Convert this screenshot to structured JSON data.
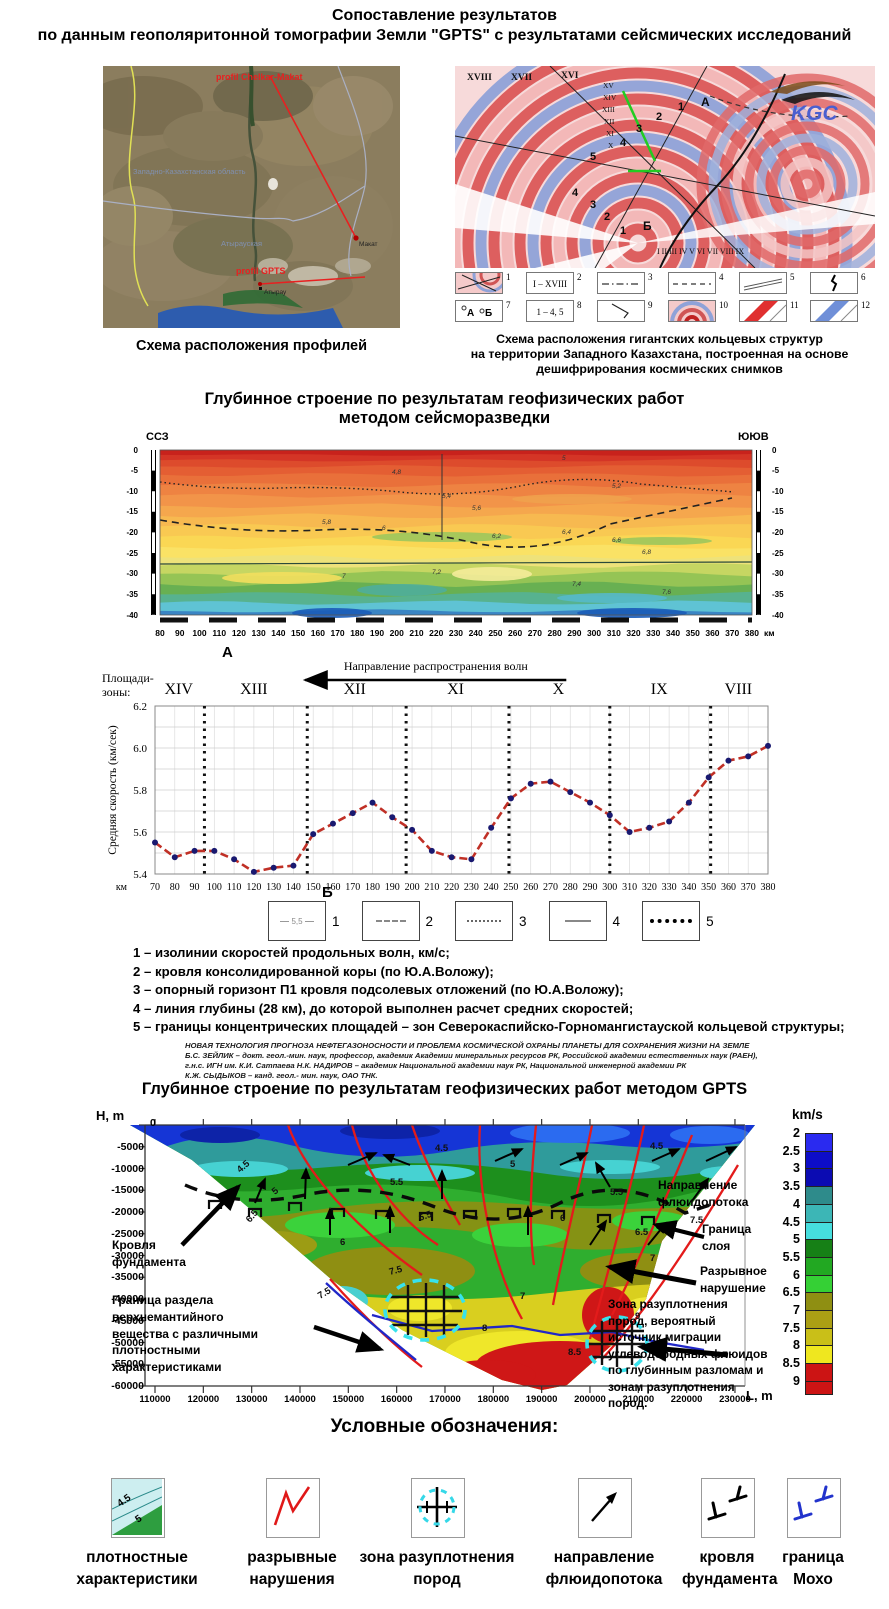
{
  "header": {
    "title_line1": "Сопоставление результатов",
    "title_line2": "по данным геополяритонной томографии Земли  \"GPTS\"  с  результатами сейсмических исследований"
  },
  "profiles_map": {
    "caption": "Схема расположения профилей",
    "labels": {
      "profile_north": "profil Chelkar-Makat",
      "region_west": "Западно-Казахстанская область",
      "region_atyrau": "Атырауская",
      "profile_gpts": "profil GPTS",
      "town_makat": "Макат",
      "city_atyrau": "Атырау"
    }
  },
  "rings_map": {
    "caption_line1": "Схема расположения гигантских кольцевых структур",
    "caption_line2": "на территории Западного Казахстана, построенная на основе",
    "caption_line3": "дешифрирования космических снимков",
    "top_numerals": [
      "XVIII",
      "XVII",
      "XVI"
    ],
    "column_numerals": [
      "XV",
      "XIV",
      "XIII",
      "XII",
      "XI",
      "X"
    ],
    "upper_numbers": [
      "1",
      "2",
      "3",
      "4",
      "5"
    ],
    "lower_numbers": [
      "4",
      "3",
      "2",
      "1"
    ],
    "point_a": "А",
    "point_b": "Б",
    "bottom_numerals": "I   II   III   IV   V   VI   VII   VIII   IX",
    "logo": "KGC",
    "legend": [
      {
        "num": "1",
        "glyph": "rings-lines"
      },
      {
        "num": "2",
        "glyph": "text",
        "text": "I – XVIII"
      },
      {
        "num": "3",
        "glyph": "dashdot"
      },
      {
        "num": "4",
        "glyph": "dashed"
      },
      {
        "num": "5",
        "glyph": "parallel"
      },
      {
        "num": "6",
        "glyph": "fault"
      },
      {
        "num": "7",
        "glyph": "letters",
        "text_a": "А",
        "text_b": "Б"
      },
      {
        "num": "8",
        "glyph": "text",
        "text": "1 – 4, 5"
      },
      {
        "num": "9",
        "glyph": "bent"
      },
      {
        "num": "10",
        "glyph": "rings-red"
      },
      {
        "num": "11",
        "glyph": "stripe-red"
      },
      {
        "num": "12",
        "glyph": "stripe-blue"
      }
    ]
  },
  "seismic_section": {
    "title_line1": "Глубинное строение по результатам геофизических работ",
    "title_line2": "методом сейсморазведки",
    "nw_label": "ССЗ",
    "se_label": "ЮЮВ",
    "depth_ticks": [
      "0",
      "-5",
      "-10",
      "-15",
      "-20",
      "-25",
      "-30",
      "-35",
      "-40"
    ],
    "x_ticks": [
      "80",
      "90",
      "100",
      "110",
      "120",
      "130",
      "140",
      "150",
      "160",
      "170",
      "180",
      "190",
      "200",
      "210",
      "220",
      "230",
      "240",
      "250",
      "260",
      "270",
      "280",
      "290",
      "300",
      "310",
      "320",
      "330",
      "340",
      "350",
      "360",
      "370",
      "380"
    ],
    "x_unit": "км",
    "panel_label": "А",
    "contour_labels": [
      "5",
      "4,8",
      "5,2",
      "5,4",
      "5,6",
      "5,8",
      "6",
      "6,2",
      "6,4",
      "6,6",
      "6,8",
      "7",
      "7,2",
      "7,4",
      "7,6"
    ]
  },
  "chart_data": {
    "type": "line",
    "panel_label": "Б",
    "zones_label_line1": "Площади-",
    "zones_label_line2": "зоны:",
    "direction_label": "Направление распространения волн",
    "ylabel": "Средняя скорость (км/сек)",
    "x_unit": "км",
    "x": [
      70,
      80,
      90,
      100,
      110,
      120,
      130,
      140,
      150,
      160,
      170,
      180,
      190,
      200,
      210,
      220,
      230,
      240,
      250,
      260,
      270,
      280,
      290,
      300,
      310,
      320,
      330,
      340,
      350,
      360,
      370,
      380
    ],
    "values": [
      5.55,
      5.48,
      5.51,
      5.51,
      5.47,
      5.41,
      5.43,
      5.44,
      5.59,
      5.64,
      5.69,
      5.74,
      5.67,
      5.61,
      5.51,
      5.48,
      5.47,
      5.62,
      5.76,
      5.83,
      5.84,
      5.79,
      5.74,
      5.68,
      5.6,
      5.62,
      5.65,
      5.74,
      5.86,
      5.94,
      5.96,
      6.01
    ],
    "ylim": [
      5.4,
      6.2
    ],
    "y_ticks": [
      5.4,
      5.6,
      5.8,
      6.0,
      6.2
    ],
    "zone_boundaries": [
      95,
      147,
      197,
      249,
      300,
      351
    ],
    "zones": [
      {
        "label": "XIV",
        "km": 82
      },
      {
        "label": "XIII",
        "km": 120
      },
      {
        "label": "XII",
        "km": 171
      },
      {
        "label": "XI",
        "km": 222
      },
      {
        "label": "X",
        "km": 274
      },
      {
        "label": "IX",
        "km": 325
      },
      {
        "label": "VIII",
        "km": 365
      }
    ],
    "line_color": "#c03026",
    "dot_color": "#191970"
  },
  "seismic_legend": {
    "boxes": [
      {
        "num": "1",
        "label": "5,5"
      },
      {
        "num": "2"
      },
      {
        "num": "3"
      },
      {
        "num": "4"
      },
      {
        "num": "5"
      }
    ],
    "lines": [
      "1 – изолинии скоростей продольных волн, км/с;",
      "2 – кровля консолидированной коры (по Ю.А.Воложу);",
      "3 – опорный горизонт П1 кровля подсолевых отложений (по Ю.А.Воложу);",
      "4 – линия глубины (28 км), до которой выполнен расчет средних скоростей;",
      "5 – границы концентрических площадей – зон Северокаспийско-Горномангистауской кольцевой структуры;"
    ]
  },
  "citation": {
    "lines": [
      "НОВАЯ ТЕХНОЛОГИЯ ПРОГНОЗА НЕФТЕГАЗОНОСНОСТИ И ПРОБЛЕМА КОСМИЧЕСКОЙ ОХРАНЫ ПЛАНЕТЫ ДЛЯ СОХРАНЕНИЯ ЖИЗНИ НА ЗЕМЛЕ",
      "Б.С. ЗЕЙЛИК – докт. геол.-мин. наук, профессор, академик Академии минеральных ресурсов РК, Российской академии естественных наук (РАЕН),",
      "г.н.с. ИГН им. К.И. Сатпаева Н.К. НАДИРОВ – академик Национальной академии наук РК, Национальной инженерной академии РК",
      "К.Ж. СЫДЫКОВ – канд. геол.- мин. наук, ОАО ТНК."
    ]
  },
  "gpts_section": {
    "title": "Глубинное строение по результатам геофизических работ методом GPTS",
    "y_axis_label": "H, m",
    "y_zero": "0",
    "depth_ticks": [
      "-5000",
      "-10000",
      "-15000",
      "-20000",
      "-25000",
      "-30000",
      "-35000",
      "-40000",
      "-45000",
      "-50000",
      "-55000",
      "-60000"
    ],
    "x_ticks": [
      "110000",
      "120000",
      "130000",
      "140000",
      "150000",
      "160000",
      "170000",
      "180000",
      "190000",
      "200000",
      "210000",
      "220000",
      "230000"
    ],
    "x_axis_label": "L, m",
    "colorbar": {
      "title": "km/s",
      "labels": [
        "2",
        "2.5",
        "3",
        "3.5",
        "4",
        "4.5",
        "5",
        "5.5",
        "6",
        "6.5",
        "7",
        "7.5",
        "8",
        "8.5",
        "9"
      ],
      "colors": [
        "#2a2af0",
        "#0d0dc8",
        "#0b0bb2",
        "#2e8b8b",
        "#3cb6b6",
        "#46dede",
        "#168016",
        "#22a822",
        "#35d035",
        "#8f8f12",
        "#ab9f14",
        "#c9bf18",
        "#efe71f",
        "#cc1414"
      ]
    },
    "contour_labels": [
      "4.5",
      "4.5",
      "4.5",
      "5",
      "5",
      "5.5",
      "5.5",
      "6",
      "6",
      "6.5",
      "6.5",
      "7",
      "7.5",
      "8",
      "8.5",
      "9",
      "6.5",
      "7.5",
      "7",
      "7.5"
    ],
    "annotations": {
      "fluid_direction": "Направление флюидопотока",
      "layer_boundary": "Граница слоя",
      "fault": "Разрывное нарушение",
      "basement_top": "Кровля фундамента",
      "mantle_boundary": "Граница раздела верхнемантийного вещества с различными плотностными характеристиками",
      "decompaction_zone": "Зона разуплотнения пород, вероятный источник миграции углеводородных флюидов по глубинным разломам и зонам разуплотнения пород."
    }
  },
  "symbols_legend": {
    "title": "Условные обозначения:",
    "items": [
      {
        "icon": "density",
        "line1": "плотностные",
        "line2": "характеристики",
        "icon_labels": [
          "4.5",
          "5"
        ]
      },
      {
        "icon": "faults",
        "line1": "разрывные",
        "line2": "нарушения"
      },
      {
        "icon": "decompaction",
        "line1": "зона разуплотнения",
        "line2": "пород"
      },
      {
        "icon": "fluid-arrow",
        "line1": "направление",
        "line2": "флюидопотока"
      },
      {
        "icon": "basement",
        "line1": "кровля",
        "line2": "фундамента"
      },
      {
        "icon": "moho",
        "line1": "граница",
        "line2": "Мохо"
      }
    ]
  }
}
